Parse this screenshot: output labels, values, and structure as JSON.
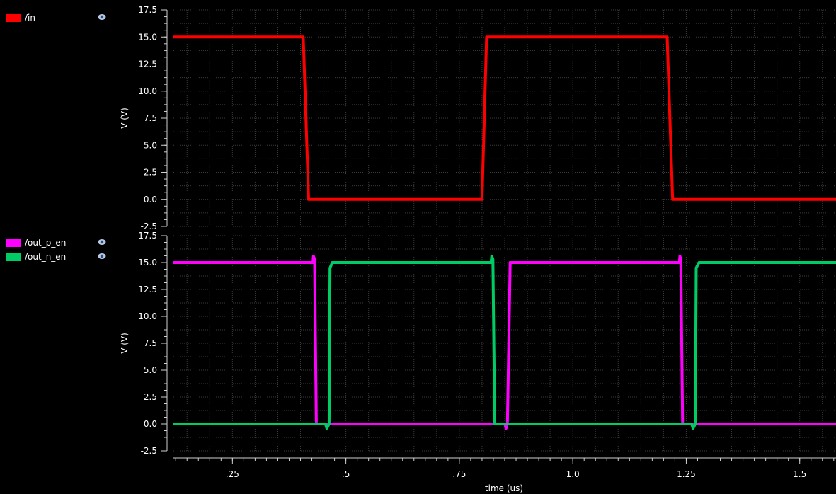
{
  "legend": {
    "panel1": [
      {
        "label": "/in",
        "color": "#ff0000",
        "icon": "eye-icon"
      }
    ],
    "panel2": [
      {
        "label": "/out_p_en",
        "color": "#ff00ff",
        "icon": "eye-icon"
      },
      {
        "label": "/out_n_en",
        "color": "#00cc66",
        "icon": "eye-icon"
      }
    ]
  },
  "chart_data": [
    {
      "type": "line",
      "ylabel": "V (V)",
      "ylim": [
        -2.5,
        17.5
      ],
      "yticks": [
        "17.5",
        "15.0",
        "12.5",
        "10.0",
        "7.5",
        "5.0",
        "2.5",
        "0.0",
        "-2.5"
      ],
      "grid": true,
      "series": [
        {
          "name": "/in",
          "color": "#ff0000",
          "x": [
            0.12,
            0.406,
            0.418,
            0.8,
            0.81,
            1.208,
            1.22,
            1.58
          ],
          "y": [
            15,
            15,
            0,
            0,
            15,
            15,
            0,
            0
          ]
        }
      ]
    },
    {
      "type": "line",
      "ylabel": "V (V)",
      "ylim": [
        -2.5,
        17.5
      ],
      "yticks": [
        "17.5",
        "15.0",
        "12.5",
        "10.0",
        "7.5",
        "5.0",
        "2.5",
        "0.0",
        "-2.5"
      ],
      "grid": true,
      "xlabel": "time (us)",
      "xticks": [
        ".25",
        ".5",
        ".75",
        "1.0",
        "1.25",
        "1.5"
      ],
      "xtick_values": [
        0.25,
        0.5,
        0.75,
        1.0,
        1.25,
        1.5
      ],
      "xlim": [
        0.12,
        1.58
      ],
      "series": [
        {
          "name": "/out_p_en",
          "color": "#ff00ff",
          "x": [
            0.12,
            0.4275,
            0.4285,
            0.431,
            0.435,
            0.437,
            0.85,
            0.853,
            0.856,
            0.862,
            0.8635,
            1.235,
            1.236,
            1.238,
            1.242,
            1.244,
            1.58
          ],
          "y": [
            15,
            15,
            15.6,
            15.3,
            0,
            0,
            0,
            -0.4,
            0,
            15,
            15,
            15,
            15.6,
            15.3,
            0,
            0,
            0
          ]
        },
        {
          "name": "/out_n_en",
          "color": "#00cc66",
          "x": [
            0.12,
            0.455,
            0.458,
            0.463,
            0.465,
            0.47,
            0.82,
            0.8215,
            0.824,
            0.828,
            0.83,
            0.865,
            1.262,
            1.265,
            1.27,
            1.272,
            1.278,
            1.58
          ],
          "y": [
            0,
            0,
            -0.4,
            0,
            14.5,
            15,
            15,
            15.6,
            15.3,
            0,
            0,
            0,
            0,
            -0.4,
            0,
            14.5,
            15,
            15
          ]
        }
      ]
    }
  ]
}
